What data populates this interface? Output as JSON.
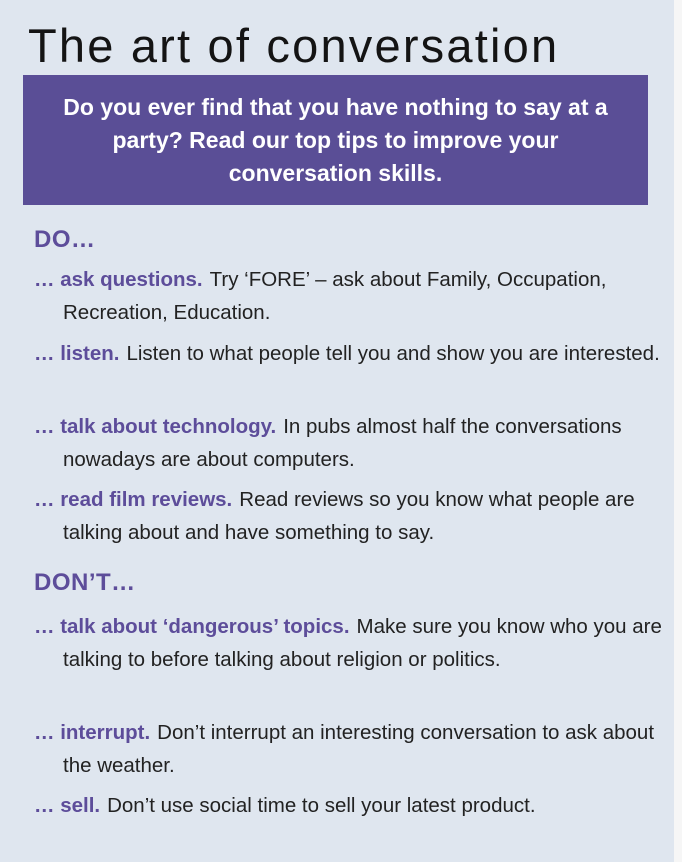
{
  "title": "The art of conversation",
  "intro": "Do you ever find that you have nothing to say at a party? Read our top tips to improve your conversation skills.",
  "do_section": {
    "heading": "DO…",
    "tips": [
      {
        "lead": "… ask questions.",
        "text": "Try ‘FORE’ – ask about Family, Occupation, Recreation, Education."
      },
      {
        "lead": "… listen.",
        "text": "Listen to what people tell you and show you are interested."
      },
      {
        "lead": "… talk about technology.",
        "text": "In pubs almost half the conversations nowadays are about computers."
      },
      {
        "lead": "… read film reviews.",
        "text": "Read reviews so you know what people are talking about and have something to say."
      }
    ]
  },
  "dont_section": {
    "heading": "DON’T…",
    "tips": [
      {
        "lead": "… talk about ‘dangerous’ topics.",
        "text": "Make sure you know who you are talking to before talking about religion or politics."
      },
      {
        "lead": "… interrupt.",
        "text": "Don’t interrupt an interesting conversation to ask about the weather."
      },
      {
        "lead": "… sell.",
        "text": "Don’t use social time to sell your latest product."
      }
    ]
  },
  "colors": {
    "accent": "#5d4d9a",
    "banner": "#5a4e96",
    "background": "#dfe6ef",
    "text": "#222222"
  }
}
